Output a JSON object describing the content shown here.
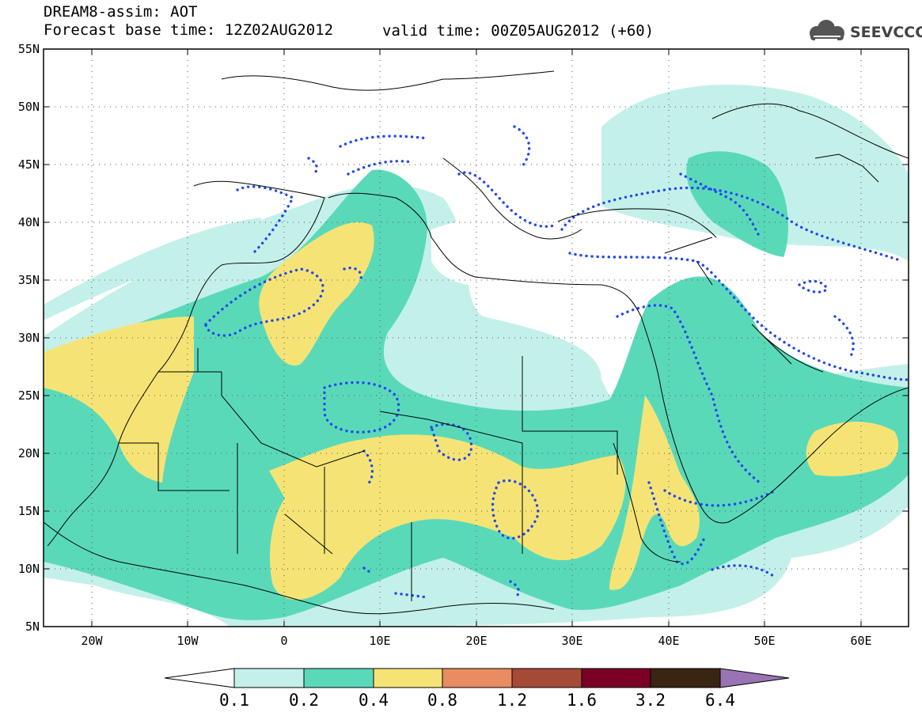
{
  "header": {
    "title": "DREAM8-assim: AOT",
    "base_time": "Forecast base time: 12Z02AUG2012",
    "valid_time": "valid time: 00Z05AUG2012 (+60)"
  },
  "logo": {
    "text": "SEEVCCC",
    "icon": "cloud-logo-icon"
  },
  "map": {
    "lat_labels": [
      "55N",
      "50N",
      "45N",
      "40N",
      "35N",
      "30N",
      "25N",
      "20N",
      "15N",
      "10N",
      "5N"
    ],
    "lon_labels": [
      "20W",
      "10W",
      "0",
      "10E",
      "20E",
      "30E",
      "40E",
      "50E",
      "60E"
    ]
  },
  "colorbar": {
    "levels": [
      "0.1",
      "0.2",
      "0.4",
      "0.8",
      "1.2",
      "1.6",
      "3.2",
      "6.4"
    ],
    "colors": [
      "#ffffff",
      "#c4f0ea",
      "#5ad9b9",
      "#f5e475",
      "#e88c62",
      "#a64a38",
      "#7a0026",
      "#3a2513",
      "#9a73b5"
    ]
  }
}
